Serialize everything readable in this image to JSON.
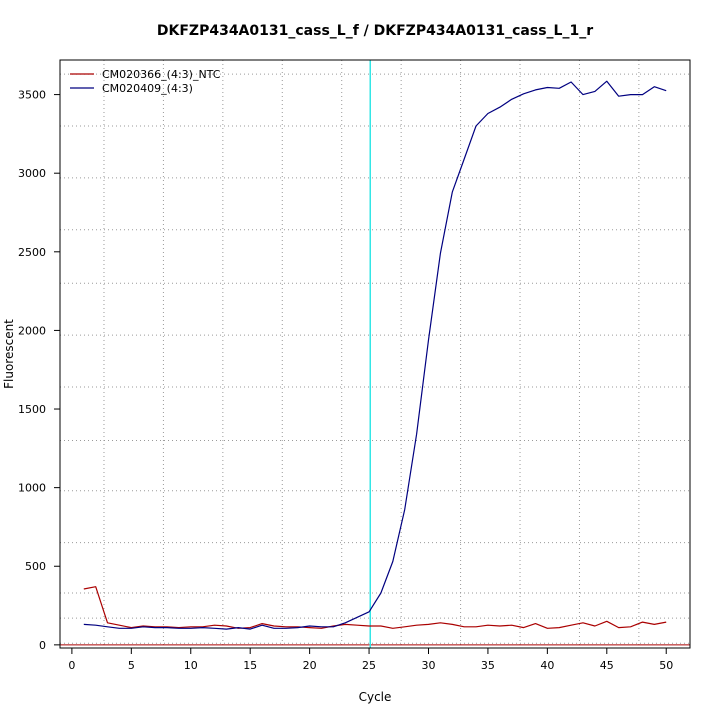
{
  "chart_data": {
    "type": "line",
    "title": "DKFZP434A0131_cass_L_f / DKFZP434A0131_cass_L_1_r",
    "xlabel": "Cycle",
    "ylabel": "Fluorescent",
    "xlim": [
      -1,
      52
    ],
    "ylim": [
      -20,
      3720
    ],
    "xticks": [
      0,
      5,
      10,
      15,
      20,
      25,
      30,
      35,
      40,
      45,
      50
    ],
    "yticks": [
      0,
      500,
      1000,
      1500,
      2000,
      2500,
      3000,
      3500
    ],
    "grid": true,
    "grid_x": [
      2.7,
      7.7,
      12.7,
      17.7,
      22.7,
      27.7,
      32.7,
      37.7,
      42.7,
      47.7
    ],
    "grid_y": [
      10,
      170,
      330,
      650,
      980,
      1300,
      1640,
      1970,
      2300,
      2640,
      2970,
      3300,
      3630
    ],
    "threshold_cycle": 25.1,
    "baseline": 0,
    "legend_position": "top-left",
    "x": [
      1,
      2,
      3,
      4,
      5,
      6,
      7,
      8,
      9,
      10,
      11,
      12,
      13,
      14,
      15,
      16,
      17,
      18,
      19,
      20,
      21,
      22,
      23,
      24,
      25,
      26,
      27,
      28,
      29,
      30,
      31,
      32,
      33,
      34,
      35,
      36,
      37,
      38,
      39,
      40,
      41,
      42,
      43,
      44,
      45,
      46,
      47,
      48,
      49,
      50
    ],
    "series": [
      {
        "name": "CM020366_(4:3)_NTC",
        "color": "#aa0000",
        "values": [
          355,
          370,
          140,
          125,
          110,
          120,
          115,
          115,
          110,
          115,
          115,
          125,
          120,
          105,
          110,
          135,
          120,
          115,
          115,
          110,
          105,
          120,
          130,
          125,
          120,
          120,
          105,
          115,
          125,
          130,
          140,
          130,
          115,
          115,
          125,
          120,
          125,
          110,
          135,
          105,
          110,
          125,
          140,
          120,
          150,
          110,
          115,
          145,
          130,
          145
        ]
      },
      {
        "name": "CM020409_(4:3)",
        "color": "#000080",
        "values": [
          130,
          125,
          115,
          105,
          105,
          115,
          110,
          110,
          105,
          105,
          110,
          105,
          100,
          110,
          100,
          125,
          105,
          105,
          110,
          120,
          115,
          115,
          140,
          175,
          210,
          330,
          530,
          860,
          1340,
          1940,
          2490,
          2880,
          3090,
          3300,
          3380,
          3420,
          3470,
          3505,
          3530,
          3545,
          3540,
          3580,
          3500,
          3520,
          3585,
          3490,
          3500,
          3500,
          3550,
          3525
        ]
      }
    ]
  }
}
